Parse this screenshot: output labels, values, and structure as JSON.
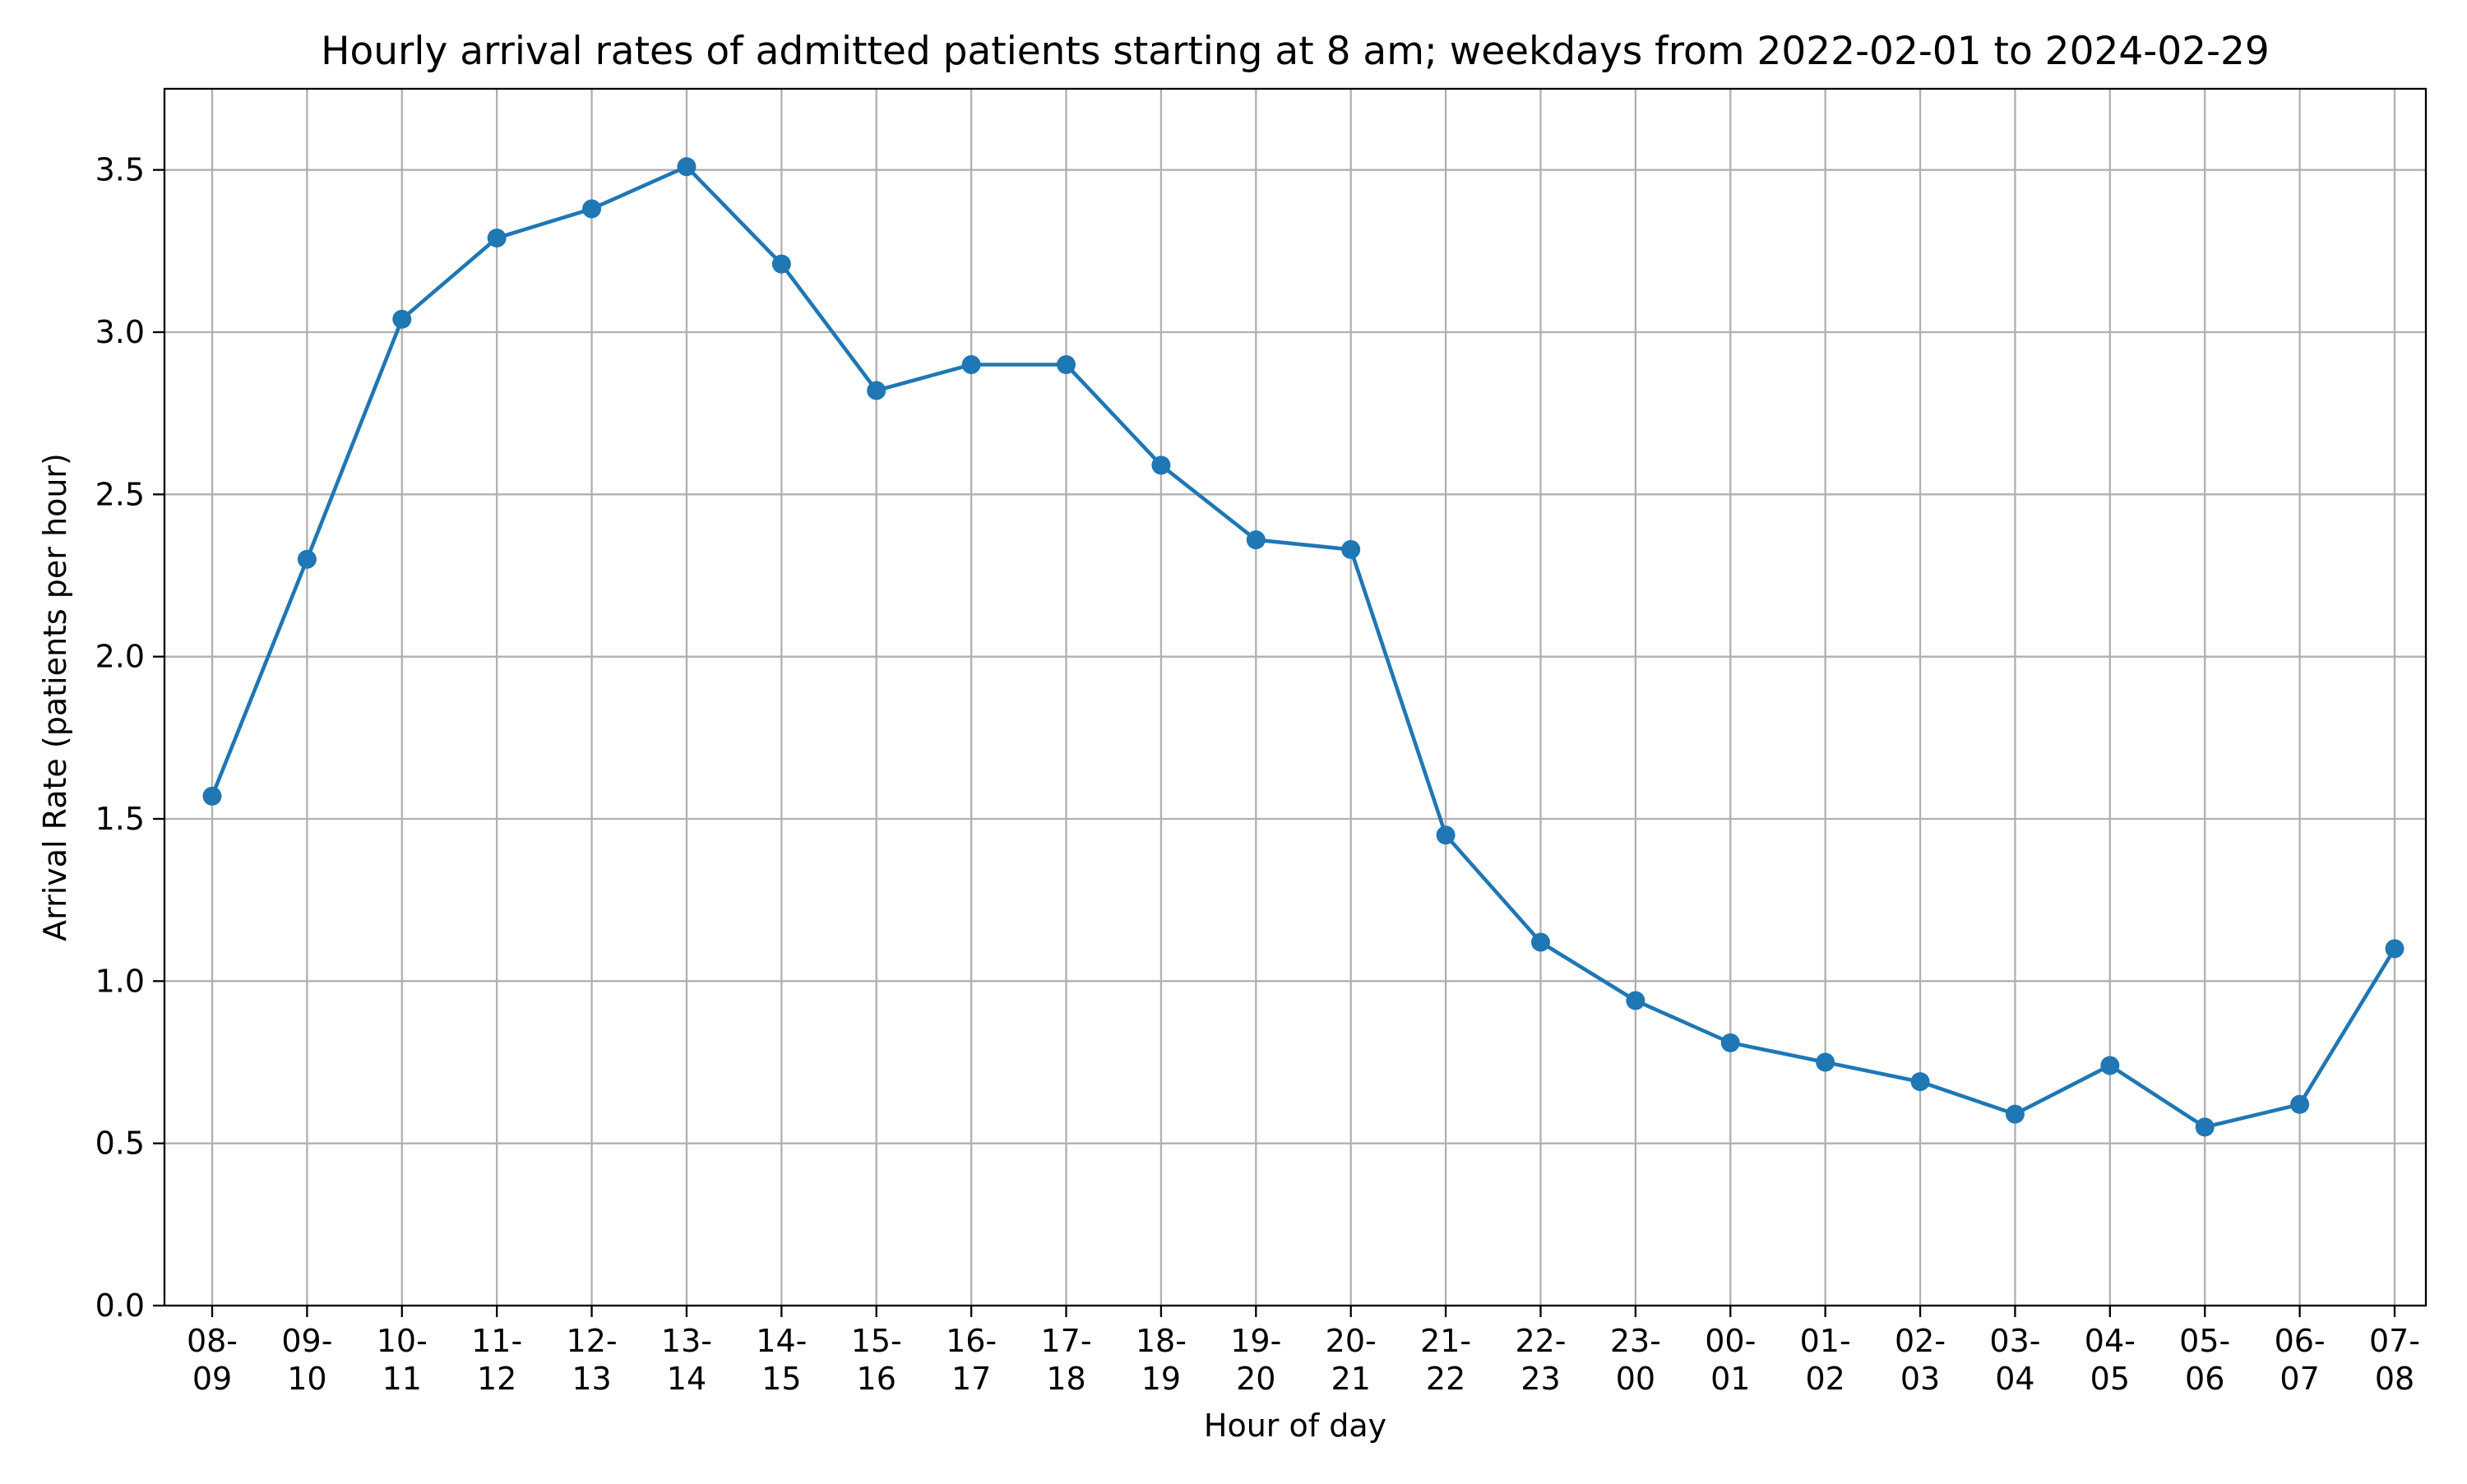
{
  "chart_data": {
    "type": "line",
    "title": "Hourly arrival rates of admitted patients starting at 8 am; weekdays from 2022-02-01 to 2024-02-29",
    "xlabel": "Hour of day",
    "ylabel": "Arrival Rate (patients per hour)",
    "categories": [
      [
        "08-",
        "09"
      ],
      [
        "09-",
        "10"
      ],
      [
        "10-",
        "11"
      ],
      [
        "11-",
        "12"
      ],
      [
        "12-",
        "13"
      ],
      [
        "13-",
        "14"
      ],
      [
        "14-",
        "15"
      ],
      [
        "15-",
        "16"
      ],
      [
        "16-",
        "17"
      ],
      [
        "17-",
        "18"
      ],
      [
        "18-",
        "19"
      ],
      [
        "19-",
        "20"
      ],
      [
        "20-",
        "21"
      ],
      [
        "21-",
        "22"
      ],
      [
        "22-",
        "23"
      ],
      [
        "23-",
        "00"
      ],
      [
        "00-",
        "01"
      ],
      [
        "01-",
        "02"
      ],
      [
        "02-",
        "03"
      ],
      [
        "03-",
        "04"
      ],
      [
        "04-",
        "05"
      ],
      [
        "05-",
        "06"
      ],
      [
        "06-",
        "07"
      ],
      [
        "07-",
        "08"
      ]
    ],
    "series": [
      {
        "color": "#1f77b4",
        "marker": "circle",
        "values": [
          1.57,
          2.3,
          3.04,
          3.29,
          3.38,
          3.51,
          3.21,
          2.82,
          2.9,
          2.9,
          2.59,
          2.36,
          2.33,
          1.45,
          1.12,
          0.94,
          0.81,
          0.75,
          0.69,
          0.59,
          0.74,
          0.55,
          0.62,
          1.1
        ]
      }
    ],
    "ylim": [
      0,
      3.75
    ],
    "yticks": [
      0.0,
      0.5,
      1.0,
      1.5,
      2.0,
      2.5,
      3.0,
      3.5
    ],
    "ytick_labels": [
      "0.0",
      "0.5",
      "1.0",
      "1.5",
      "2.0",
      "2.5",
      "3.0",
      "3.5"
    ],
    "grid": true,
    "legend": "none"
  }
}
